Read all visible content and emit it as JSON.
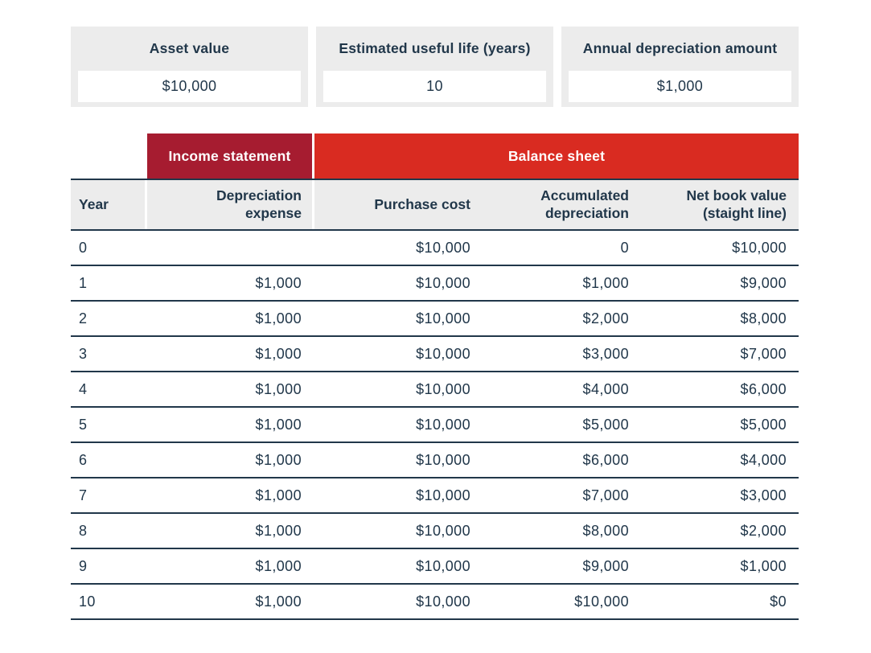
{
  "inputs": [
    {
      "label": "Asset value",
      "value": "$10,000"
    },
    {
      "label": "Estimated useful life (years)",
      "value": "10"
    },
    {
      "label": "Annual depreciation amount",
      "value": "$1,000"
    }
  ],
  "table": {
    "group_headers": {
      "income": "Income statement",
      "balance": "Balance sheet"
    },
    "columns": {
      "year": "Year",
      "dep": "Depreciation expense",
      "purchase": "Purchase cost",
      "accum": "Accumulated depreciation",
      "nbv": "Net book value (staight line)"
    },
    "rows": [
      {
        "year": "0",
        "dep": "",
        "purchase": "$10,000",
        "accum": "0",
        "nbv": "$10,000"
      },
      {
        "year": "1",
        "dep": "$1,000",
        "purchase": "$10,000",
        "accum": "$1,000",
        "nbv": "$9,000"
      },
      {
        "year": "2",
        "dep": "$1,000",
        "purchase": "$10,000",
        "accum": "$2,000",
        "nbv": "$8,000"
      },
      {
        "year": "3",
        "dep": "$1,000",
        "purchase": "$10,000",
        "accum": "$3,000",
        "nbv": "$7,000"
      },
      {
        "year": "4",
        "dep": "$1,000",
        "purchase": "$10,000",
        "accum": "$4,000",
        "nbv": "$6,000"
      },
      {
        "year": "5",
        "dep": "$1,000",
        "purchase": "$10,000",
        "accum": "$5,000",
        "nbv": "$5,000"
      },
      {
        "year": "6",
        "dep": "$1,000",
        "purchase": "$10,000",
        "accum": "$6,000",
        "nbv": "$4,000"
      },
      {
        "year": "7",
        "dep": "$1,000",
        "purchase": "$10,000",
        "accum": "$7,000",
        "nbv": "$3,000"
      },
      {
        "year": "8",
        "dep": "$1,000",
        "purchase": "$10,000",
        "accum": "$8,000",
        "nbv": "$2,000"
      },
      {
        "year": "9",
        "dep": "$1,000",
        "purchase": "$10,000",
        "accum": "$9,000",
        "nbv": "$1,000"
      },
      {
        "year": "10",
        "dep": "$1,000",
        "purchase": "$10,000",
        "accum": "$10,000",
        "nbv": "$0"
      }
    ]
  },
  "colors": {
    "income_statement_red": "#a61c30",
    "balance_sheet_red": "#d92b21",
    "text_navy": "#21374a",
    "panel_gray": "#ececec"
  },
  "chart_data": {
    "type": "table",
    "title": "Straight-line depreciation schedule",
    "inputs": {
      "asset_value": 10000,
      "useful_life_years": 10,
      "annual_depreciation": 1000
    },
    "column_groups": [
      "",
      "Income statement",
      "Balance sheet",
      "Balance sheet",
      "Balance sheet"
    ],
    "columns": [
      "Year",
      "Depreciation expense",
      "Purchase cost",
      "Accumulated depreciation",
      "Net book value (staight line)"
    ],
    "rows": [
      [
        0,
        null,
        10000,
        0,
        10000
      ],
      [
        1,
        1000,
        10000,
        1000,
        9000
      ],
      [
        2,
        1000,
        10000,
        2000,
        8000
      ],
      [
        3,
        1000,
        10000,
        3000,
        7000
      ],
      [
        4,
        1000,
        10000,
        4000,
        6000
      ],
      [
        5,
        1000,
        10000,
        5000,
        5000
      ],
      [
        6,
        1000,
        10000,
        6000,
        4000
      ],
      [
        7,
        1000,
        10000,
        7000,
        3000
      ],
      [
        8,
        1000,
        10000,
        8000,
        2000
      ],
      [
        9,
        1000,
        10000,
        9000,
        1000
      ],
      [
        10,
        1000,
        10000,
        10000,
        0
      ]
    ]
  }
}
